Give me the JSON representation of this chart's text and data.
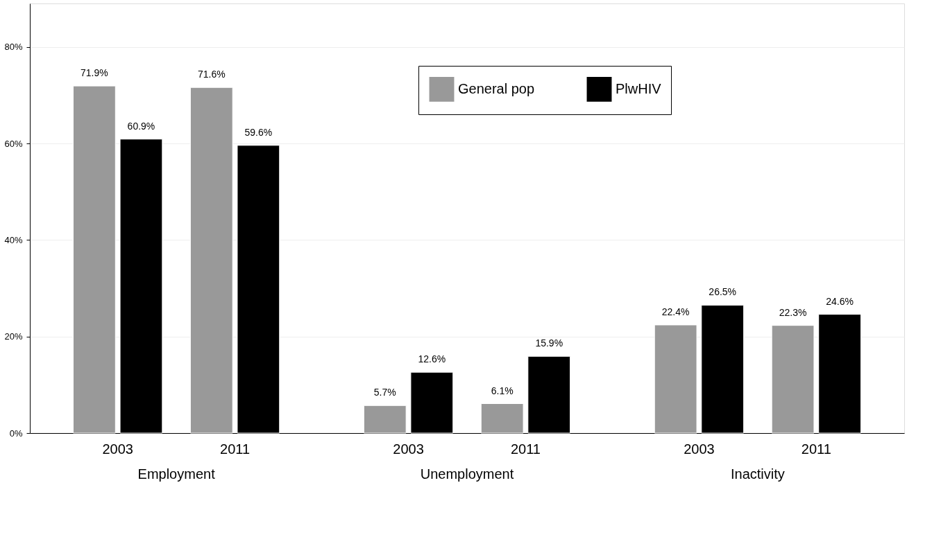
{
  "chart_data": {
    "type": "bar",
    "categories": [
      "2003",
      "2011",
      "2003",
      "2011",
      "2003",
      "2011"
    ],
    "series": [
      {
        "name": "General pop",
        "color": "#999999",
        "values": [
          71.9,
          71.6,
          5.7,
          6.1,
          22.4,
          22.3
        ],
        "value_labels": [
          "71.9%",
          "71.6%",
          "5.7%",
          "6.1%",
          "22.4%",
          "22.3%"
        ]
      },
      {
        "name": "PlwHIV",
        "color": "#000000",
        "values": [
          60.9,
          59.6,
          12.6,
          15.9,
          26.5,
          24.6
        ],
        "value_labels": [
          "60.9%",
          "59.6%",
          "12.6%",
          "15.9%",
          "26.5%",
          "24.6%"
        ]
      }
    ],
    "annotations": [
      "Employment",
      "Unemployment",
      "Inactivity"
    ],
    "ylim": [
      0,
      89
    ],
    "yticks": [
      {
        "value": 0,
        "label": "0%"
      },
      {
        "value": 20,
        "label": "20%"
      },
      {
        "value": 40,
        "label": "40%"
      },
      {
        "value": 60,
        "label": "60%"
      },
      {
        "value": 80,
        "label": "80%"
      }
    ],
    "grid": "y",
    "legend": "top right"
  }
}
